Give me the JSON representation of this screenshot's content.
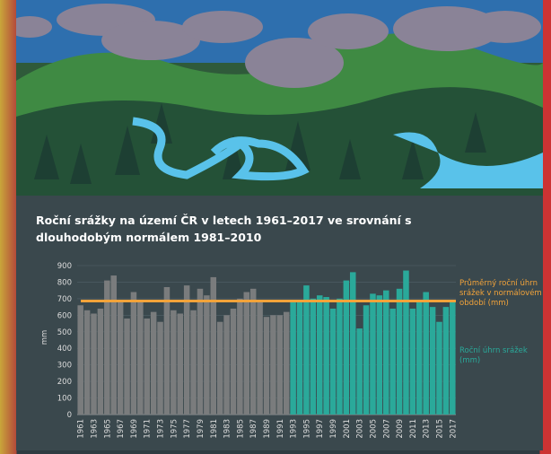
{
  "chart_data": {
    "type": "bar",
    "title": "Roční srážky na území ČR v letech 1961–2017 ve srovnání s dlouhodobým normálem 1981–2010",
    "y_label": "mm",
    "categories": [
      "1961",
      null,
      "1963",
      null,
      "1965",
      null,
      "1967",
      null,
      "1969",
      null,
      "1971",
      null,
      "1973",
      null,
      "1975",
      null,
      "1977",
      null,
      "1979",
      null,
      "1981",
      null,
      "1983",
      null,
      "1985",
      null,
      "1987",
      null,
      "1989",
      null,
      "1991",
      null,
      "1993",
      null,
      "1995",
      null,
      "1997",
      null,
      "1999",
      null,
      "2001",
      null,
      "2003",
      null,
      "2005",
      null,
      "2007",
      null,
      "2009",
      null,
      "2011",
      null,
      "2013",
      null,
      "2015",
      null,
      "2017"
    ],
    "series": [
      {
        "color": "#7a7c7d",
        "values": [
          660,
          630,
          610,
          640,
          810,
          840,
          680,
          580,
          740,
          690,
          580,
          620,
          560,
          770,
          630,
          610,
          780,
          630,
          760,
          720,
          830,
          560,
          600,
          640,
          700,
          740,
          760,
          690,
          590,
          600,
          600,
          620,
          null,
          null,
          null,
          null,
          null,
          null,
          null,
          null,
          null,
          null,
          null,
          null,
          null,
          null,
          null,
          null,
          null,
          null,
          null,
          null,
          null,
          null,
          null,
          null,
          null
        ]
      },
      {
        "name": "Roční úhrn srážek (mm)",
        "color": "#2aa99a",
        "values": [
          null,
          null,
          null,
          null,
          null,
          null,
          null,
          null,
          null,
          null,
          null,
          null,
          null,
          null,
          null,
          null,
          null,
          null,
          null,
          null,
          null,
          null,
          null,
          null,
          null,
          null,
          null,
          null,
          null,
          null,
          null,
          null,
          680,
          680,
          780,
          700,
          720,
          710,
          640,
          700,
          810,
          860,
          520,
          660,
          730,
          720,
          750,
          640,
          760,
          870,
          640,
          680,
          740,
          650,
          560,
          650,
          680
        ]
      }
    ],
    "reference_line": {
      "value": 686,
      "label": "Průměrný roční úhrn srážek v normálovém období (mm)",
      "color": "#f2a33a"
    },
    "ylim": [
      0,
      900
    ],
    "yticks": [
      0,
      100,
      200,
      300,
      400,
      500,
      600,
      700,
      800,
      900
    ],
    "grid": true
  }
}
